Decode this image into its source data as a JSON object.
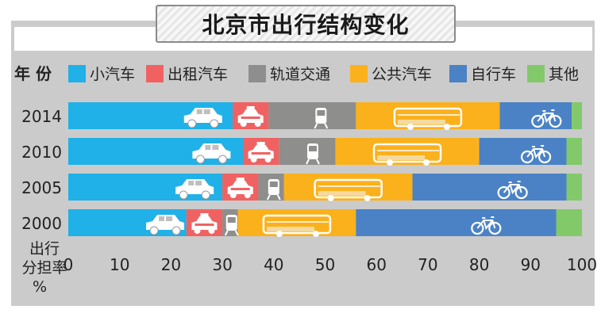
{
  "chart_data": {
    "type": "bar",
    "orientation": "horizontal",
    "stacked": true,
    "title": "北京市出行结构变化",
    "legend_title": "年 份",
    "categories": [
      "2014",
      "2010",
      "2005",
      "2000"
    ],
    "series": [
      {
        "name": "小汽车",
        "color": "#1fb1e8",
        "values": [
          32,
          34,
          30,
          23
        ]
      },
      {
        "name": "出租汽车",
        "color": "#f06262",
        "values": [
          7,
          7,
          7,
          7
        ]
      },
      {
        "name": "轨道交通",
        "color": "#8e8e8c",
        "values": [
          17,
          11,
          5,
          3
        ]
      },
      {
        "name": "公共汽车",
        "color": "#fbb11c",
        "values": [
          28,
          28,
          25,
          23
        ]
      },
      {
        "name": "自行车",
        "color": "#4a82c5",
        "values": [
          14,
          17,
          30,
          39
        ]
      },
      {
        "name": "其他",
        "color": "#82c96a",
        "values": [
          2,
          3,
          3,
          5
        ]
      }
    ],
    "xlim": [
      0,
      100
    ],
    "xticks": [
      0,
      10,
      20,
      30,
      40,
      50,
      60,
      70,
      80,
      90,
      100
    ],
    "xlabel": [
      "出行",
      "分担率",
      "%"
    ],
    "legend_position": "top"
  }
}
